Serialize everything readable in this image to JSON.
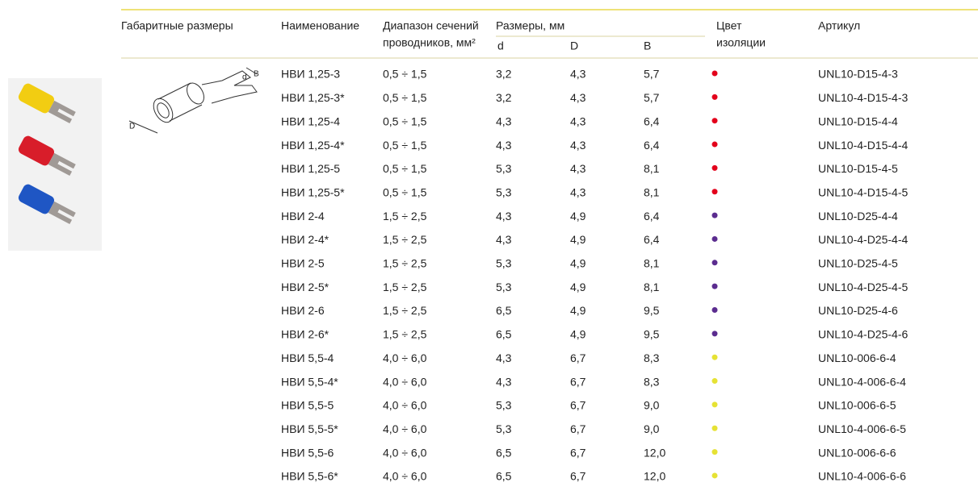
{
  "header": {
    "dimensions": "Габаритные размеры",
    "name": "Наименование",
    "range_line1": "Диапазон сечений",
    "range_line2": "проводников, мм²",
    "sizes": "Размеры, мм",
    "d": "d",
    "D": "D",
    "B": "B",
    "color_line1": "Цвет",
    "color_line2": "изоляции",
    "article": "Артикул"
  },
  "drawing": {
    "label_D": "D",
    "label_d": "d",
    "label_B": "B"
  },
  "table": {
    "rows": [
      [
        "НВИ 1,25-3",
        "0,5 ÷ 1,5",
        "3,2",
        "4,3",
        "5,7",
        "UNL10-D15-4-3"
      ],
      [
        "НВИ 1,25-3*",
        "0,5 ÷ 1,5",
        "3,2",
        "4,3",
        "5,7",
        "UNL10-4-D15-4-3"
      ],
      [
        "НВИ 1,25-4",
        "0,5 ÷ 1,5",
        "4,3",
        "4,3",
        "6,4",
        "UNL10-D15-4-4"
      ],
      [
        "НВИ 1,25-4*",
        "0,5 ÷ 1,5",
        "4,3",
        "4,3",
        "6,4",
        "UNL10-4-D15-4-4"
      ],
      [
        "НВИ 1,25-5",
        "0,5 ÷ 1,5",
        "5,3",
        "4,3",
        "8,1",
        "UNL10-D15-4-5"
      ],
      [
        "НВИ 1,25-5*",
        "0,5 ÷ 1,5",
        "5,3",
        "4,3",
        "8,1",
        "UNL10-4-D15-4-5"
      ],
      [
        "НВИ 2-4",
        "1,5 ÷ 2,5",
        "4,3",
        "4,9",
        "6,4",
        "UNL10-D25-4-4"
      ],
      [
        "НВИ 2-4*",
        "1,5 ÷ 2,5",
        "4,3",
        "4,9",
        "6,4",
        "UNL10-4-D25-4-4"
      ],
      [
        "НВИ 2-5",
        "1,5 ÷ 2,5",
        "5,3",
        "4,9",
        "8,1",
        "UNL10-D25-4-5"
      ],
      [
        "НВИ 2-5*",
        "1,5 ÷ 2,5",
        "5,3",
        "4,9",
        "8,1",
        "UNL10-4-D25-4-5"
      ],
      [
        "НВИ 2-6",
        "1,5 ÷ 2,5",
        "6,5",
        "4,9",
        "9,5",
        "UNL10-D25-4-6"
      ],
      [
        "НВИ 2-6*",
        "1,5 ÷ 2,5",
        "6,5",
        "4,9",
        "9,5",
        "UNL10-4-D25-4-6"
      ],
      [
        "НВИ 5,5-4",
        "4,0 ÷ 6,0",
        "4,3",
        "6,7",
        "8,3",
        "UNL10-006-6-4"
      ],
      [
        "НВИ 5,5-4*",
        "4,0 ÷ 6,0",
        "4,3",
        "6,7",
        "8,3",
        "UNL10-4-006-6-4"
      ],
      [
        "НВИ 5,5-5",
        "4,0 ÷ 6,0",
        "5,3",
        "6,7",
        "9,0",
        "UNL10-006-6-5"
      ],
      [
        "НВИ 5,5-5*",
        "4,0 ÷ 6,0",
        "5,3",
        "6,7",
        "9,0",
        "UNL10-4-006-6-5"
      ],
      [
        "НВИ 5,5-6",
        "4,0 ÷ 6,0",
        "6,5",
        "6,7",
        "12,0",
        "UNL10-006-6-6"
      ],
      [
        "НВИ 5,5-6*",
        "4,0 ÷ 6,0",
        "6,5",
        "6,7",
        "12,0",
        "UNL10-4-006-6-6"
      ]
    ],
    "dot_colors": [
      "#e3001b",
      "#e3001b",
      "#e3001b",
      "#e3001b",
      "#e3001b",
      "#e3001b",
      "#5b2c8f",
      "#5b2c8f",
      "#5b2c8f",
      "#5b2c8f",
      "#5b2c8f",
      "#5b2c8f",
      "#e6e234",
      "#e6e234",
      "#e6e234",
      "#e6e234",
      "#e6e234",
      "#e6e234"
    ]
  }
}
